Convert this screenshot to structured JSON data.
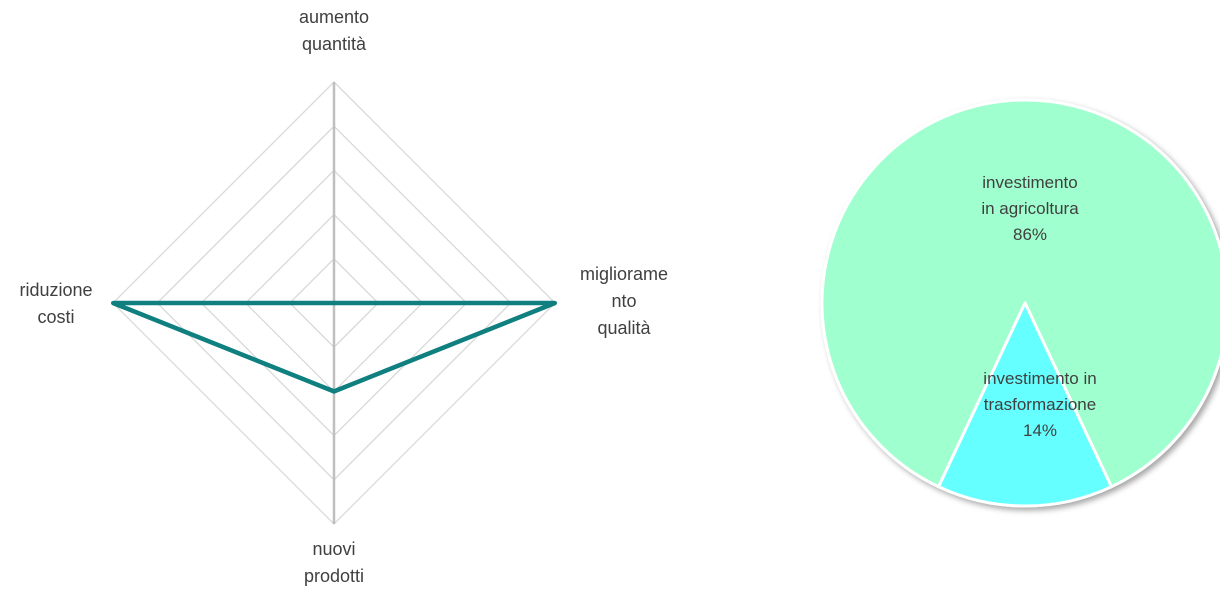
{
  "title": "",
  "chart_data": [
    {
      "type": "radar",
      "axes": [
        "aumento quantità",
        "miglioramento qualità",
        "nuovi prodotti",
        "riduzione costi"
      ],
      "axis_labels": [
        [
          "aumento",
          "quantità"
        ],
        [
          "migliorame",
          "nto",
          "qualità"
        ],
        [
          "nuovi",
          "prodotti"
        ],
        [
          "riduzione",
          "costi"
        ]
      ],
      "series": [
        {
          "values": [
            0,
            1.0,
            0.4,
            1.0
          ],
          "color": "#0f7f7f"
        }
      ],
      "r_max": 1.0,
      "rings": 5,
      "grid": true
    },
    {
      "type": "pie",
      "slices": [
        {
          "label_lines": [
            "investimento",
            "in agricoltura",
            "86%"
          ],
          "value": 86,
          "color": "#9fffcf"
        },
        {
          "label_lines": [
            "investimento in",
            "trasformazione",
            "14%"
          ],
          "value": 14,
          "color": "#66ffff"
        }
      ],
      "border_color": "#ffffff"
    }
  ]
}
